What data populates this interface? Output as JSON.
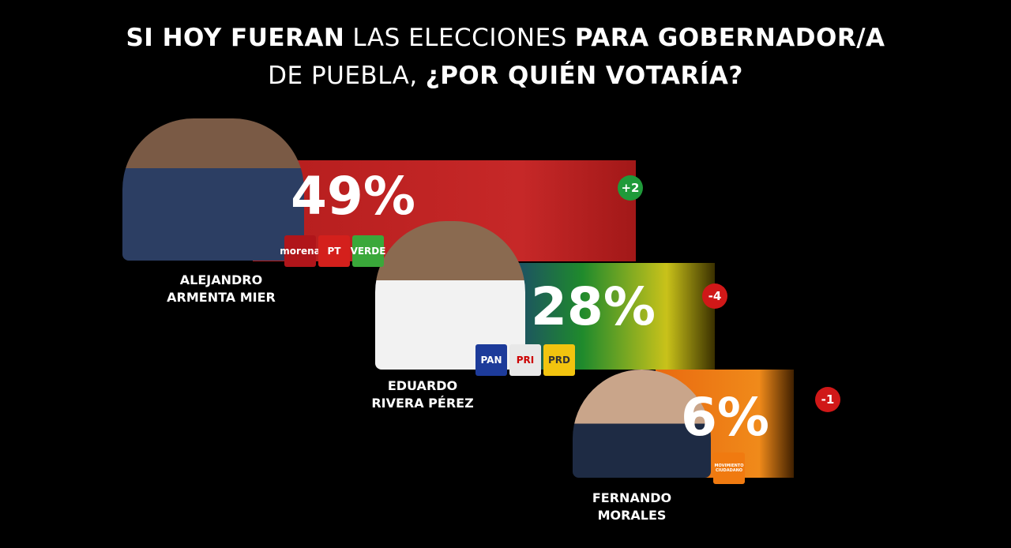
{
  "header": {
    "title_line1": [
      {
        "text": "SI HOY FUERAN",
        "bold": true
      },
      {
        "text": "LAS ELECCIONES",
        "bold": false
      },
      {
        "text": "PARA GOBERNADOR/A",
        "bold": true
      }
    ],
    "title_line2": [
      {
        "text": "DE PUEBLA,",
        "bold": false
      },
      {
        "text": "¿POR QUIÉN VOTARÍA?",
        "bold": true
      }
    ]
  },
  "candidates": [
    {
      "name_line1": "ALEJANDRO",
      "name_line2": "ARMENTA MIER",
      "share": "49%",
      "change": "+2",
      "parties": [
        "morena",
        "PT",
        "VERDE"
      ]
    },
    {
      "name_line1": "EDUARDO",
      "name_line2": "RIVERA PÉREZ",
      "share": "28%",
      "change": "-4",
      "parties": [
        "PAN",
        "PRI",
        "PRD"
      ]
    },
    {
      "name_line1": "FERNANDO",
      "name_line2": "MORALES",
      "share": "6%",
      "change": "-1",
      "parties": [
        "MOVIMIENTO CIUDADANO"
      ]
    }
  ]
}
